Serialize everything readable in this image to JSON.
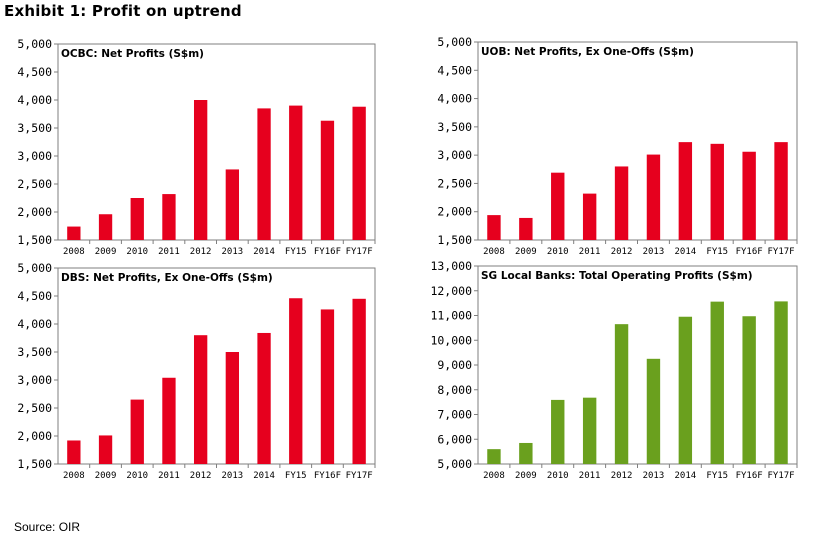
{
  "exhibit_title": "Exhibit 1: Profit on uptrend",
  "source": "Source: OIR",
  "colors": {
    "red": "#e6001e",
    "green": "#6aa01e"
  },
  "chart_data": [
    {
      "type": "bar",
      "title": "OCBC: Net Profits (S$m)",
      "categories": [
        "2008",
        "2009",
        "2010",
        "2011",
        "2012",
        "2013",
        "2014",
        "FY15",
        "FY16F",
        "FY17F"
      ],
      "values": [
        1740,
        1960,
        2250,
        2320,
        4000,
        2760,
        3850,
        3900,
        3630,
        3880
      ],
      "ylim": [
        1500,
        5000
      ],
      "yticks": [
        "1,500",
        "2,000",
        "2,500",
        "3,000",
        "3,500",
        "4,000",
        "4,500",
        "5,000"
      ],
      "color": "#e6001e"
    },
    {
      "type": "bar",
      "title": "UOB: Net Profits, Ex One-Offs (S$m)",
      "categories": [
        "2008",
        "2009",
        "2010",
        "2011",
        "2012",
        "2013",
        "2014",
        "FY15",
        "FY16F",
        "FY17F"
      ],
      "values": [
        1940,
        1890,
        2690,
        2320,
        2800,
        3010,
        3230,
        3200,
        3060,
        3230
      ],
      "ylim": [
        1500,
        5000
      ],
      "yticks": [
        "1,500",
        "2,000",
        "2,500",
        "3,000",
        "3,500",
        "4,000",
        "4,500",
        "5,000"
      ],
      "color": "#e6001e"
    },
    {
      "type": "bar",
      "title": "DBS: Net Profits, Ex One-Offs (S$m)",
      "categories": [
        "2008",
        "2009",
        "2010",
        "2011",
        "2012",
        "2013",
        "2014",
        "FY15",
        "FY16F",
        "FY17F"
      ],
      "values": [
        1920,
        2010,
        2650,
        3040,
        3800,
        3500,
        3840,
        4460,
        4260,
        4450
      ],
      "ylim": [
        1500,
        5000
      ],
      "yticks": [
        "1,500",
        "2,000",
        "2,500",
        "3,000",
        "3,500",
        "4,000",
        "4,500",
        "5,000"
      ],
      "color": "#e6001e"
    },
    {
      "type": "bar",
      "title": "SG Local Banks: Total Operating Profits (S$m)",
      "categories": [
        "2008",
        "2009",
        "2010",
        "2011",
        "2012",
        "2013",
        "2014",
        "FY15",
        "FY16F",
        "FY17F"
      ],
      "values": [
        5600,
        5850,
        7590,
        7680,
        10650,
        9250,
        10950,
        11560,
        10970,
        11570
      ],
      "ylim": [
        5000,
        13000
      ],
      "yticks": [
        "5,000",
        "6,000",
        "7,000",
        "8,000",
        "9,000",
        "10,000",
        "11,000",
        "12,000",
        "13,000"
      ],
      "color": "#6aa01e"
    }
  ]
}
